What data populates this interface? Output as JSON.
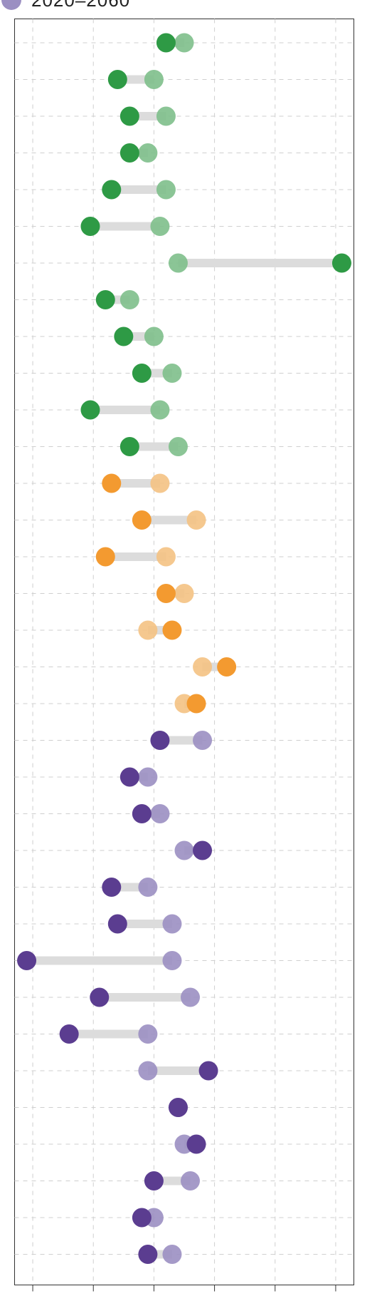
{
  "chart_data": {
    "type": "dumbbell",
    "legend": [
      {
        "label": "2020–2060",
        "color": "#9b8fc2"
      }
    ],
    "start_label": "2020",
    "end_label": "2060",
    "x_range": [
      -0.3,
      5.3
    ],
    "grid": true,
    "groups": [
      {
        "name": "green",
        "start_color": "#7ebf8b",
        "end_color": "#2e9a45",
        "rows": [
          {
            "start": 2.5,
            "end": 2.2
          },
          {
            "start": 2.0,
            "end": 1.4
          },
          {
            "start": 2.2,
            "end": 1.6
          },
          {
            "start": 1.9,
            "end": 1.6
          },
          {
            "start": 2.2,
            "end": 1.3
          },
          {
            "start": 2.1,
            "end": 0.95
          },
          {
            "start": 2.4,
            "end": 5.1
          },
          {
            "start": 1.6,
            "end": 1.2
          },
          {
            "start": 2.0,
            "end": 1.5
          },
          {
            "start": 2.3,
            "end": 1.8
          },
          {
            "start": 2.1,
            "end": 0.95
          },
          {
            "start": 2.4,
            "end": 1.6
          }
        ]
      },
      {
        "name": "orange",
        "start_color": "#f4c283",
        "end_color": "#f39a30",
        "rows": [
          {
            "start": 2.1,
            "end": 1.3
          },
          {
            "start": 2.7,
            "end": 1.8
          },
          {
            "start": 2.2,
            "end": 1.2
          },
          {
            "start": 2.5,
            "end": 2.2
          },
          {
            "start": 1.9,
            "end": 2.3
          },
          {
            "start": 2.8,
            "end": 3.2
          },
          {
            "start": 2.5,
            "end": 2.7
          }
        ]
      },
      {
        "name": "purple",
        "start_color": "#9b8fc2",
        "end_color": "#5b3d90",
        "rows": [
          {
            "start": 2.8,
            "end": 2.1
          },
          {
            "start": 1.9,
            "end": 1.6
          },
          {
            "start": 2.1,
            "end": 1.8
          },
          {
            "start": 2.5,
            "end": 2.8
          },
          {
            "start": 1.9,
            "end": 1.3
          },
          {
            "start": 2.3,
            "end": 1.4
          },
          {
            "start": 2.3,
            "end": -0.1
          },
          {
            "start": 2.6,
            "end": 1.1
          },
          {
            "start": 1.9,
            "end": 0.6
          },
          {
            "start": 1.9,
            "end": 2.9
          },
          {
            "start": 2.4,
            "end": 2.4
          },
          {
            "start": 2.5,
            "end": 2.7
          },
          {
            "start": 2.6,
            "end": 2.0
          },
          {
            "start": 2.0,
            "end": 1.8
          },
          {
            "start": 2.3,
            "end": 1.9
          }
        ]
      }
    ]
  }
}
